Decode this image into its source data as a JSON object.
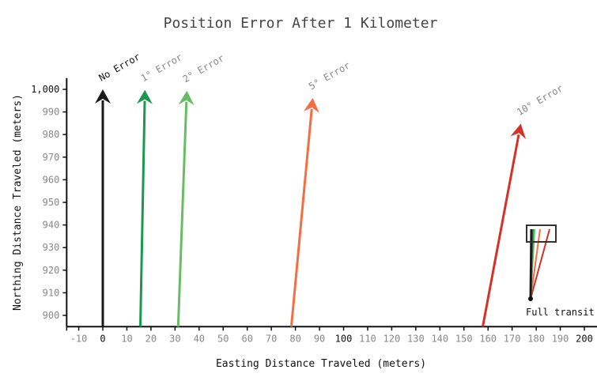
{
  "chart_data": {
    "type": "line",
    "title": "Position Error After 1 Kilometer",
    "xlabel": "Easting Distance Traveled (meters)",
    "ylabel": "Northing Distance Traveled (meters)",
    "xlim": [
      -15,
      205
    ],
    "ylim": [
      895,
      1005
    ],
    "x_ticks": [
      "-10",
      "0",
      "10",
      "20",
      "30",
      "40",
      "50",
      "60",
      "70",
      "80",
      "90",
      "100",
      "110",
      "120",
      "130",
      "140",
      "150",
      "160",
      "170",
      "180",
      "190",
      "200"
    ],
    "y_ticks": [
      "900",
      "910",
      "920",
      "930",
      "940",
      "950",
      "960",
      "970",
      "980",
      "990",
      "1,000"
    ],
    "grid": false,
    "series": [
      {
        "name": "No Error",
        "angle_deg": 0,
        "start": [
          0,
          895
        ],
        "end": [
          0,
          1000
        ],
        "color": "#1a1a1a",
        "label_color": "#111111"
      },
      {
        "name": "1° Error",
        "angle_deg": 1,
        "start": [
          15.6,
          895
        ],
        "end": [
          17.5,
          999.8
        ],
        "color": "#1a9850",
        "label_color": "#888888"
      },
      {
        "name": "2° Error",
        "angle_deg": 2,
        "start": [
          31.3,
          895
        ],
        "end": [
          34.9,
          999.4
        ],
        "color": "#66bd63",
        "label_color": "#888888"
      },
      {
        "name": "5° Error",
        "angle_deg": 5,
        "start": [
          78.3,
          895
        ],
        "end": [
          87.2,
          996.2
        ],
        "color": "#f46d43",
        "label_color": "#888888"
      },
      {
        "name": "10° Error",
        "angle_deg": 10,
        "start": [
          157.8,
          895
        ],
        "end": [
          173.6,
          984.8
        ],
        "color": "#d73027",
        "label_color": "#888888"
      }
    ],
    "inset": {
      "label": "Full transit"
    }
  }
}
